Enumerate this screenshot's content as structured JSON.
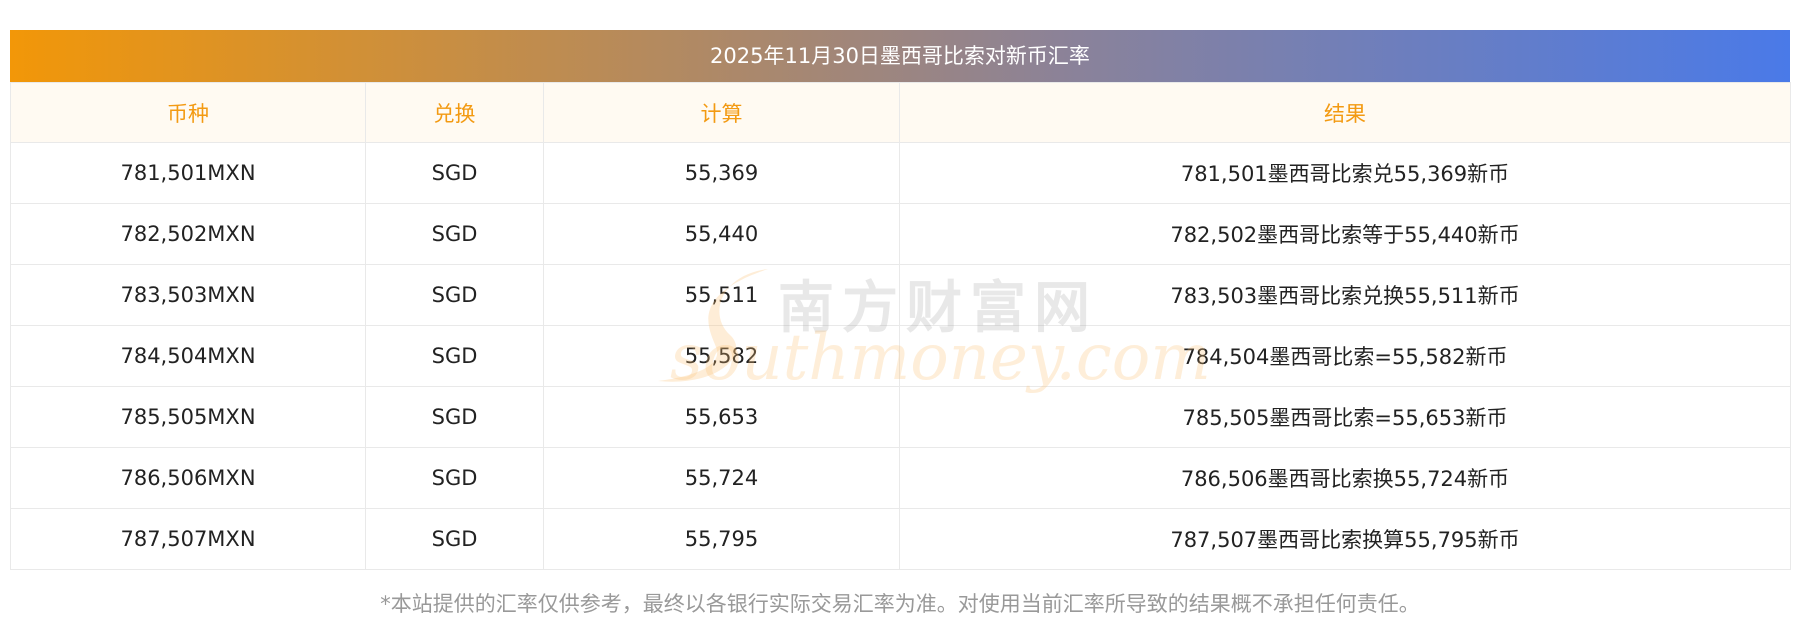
{
  "title": "2025年11月30日墨西哥比索对新币汇率",
  "headers": [
    "币种",
    "兑换",
    "计算",
    "结果"
  ],
  "rows": [
    [
      "781,501MXN",
      "SGD",
      "55,369",
      "781,501墨西哥比索兑55,369新币"
    ],
    [
      "782,502MXN",
      "SGD",
      "55,440",
      "782,502墨西哥比索等于55,440新币"
    ],
    [
      "783,503MXN",
      "SGD",
      "55,511",
      "783,503墨西哥比索兑换55,511新币"
    ],
    [
      "784,504MXN",
      "SGD",
      "55,582",
      "784,504墨西哥比索=55,582新币"
    ],
    [
      "785,505MXN",
      "SGD",
      "55,653",
      "785,505墨西哥比索=55,653新币"
    ],
    [
      "786,506MXN",
      "SGD",
      "55,724",
      "786,506墨西哥比索换55,724新币"
    ],
    [
      "787,507MXN",
      "SGD",
      "55,795",
      "787,507墨西哥比索换算55,795新币"
    ]
  ],
  "watermark": {
    "cn": "南方财富网",
    "en": "southmoney.com"
  },
  "footnote": "*本站提供的汇率仅供参考，最终以各银行实际交易汇率为准。对使用当前汇率所导致的结果概不承担任何责任。",
  "colors": {
    "header_text": "#f39a12",
    "gradient_start": "#f29708",
    "gradient_end": "#4a7ae8"
  }
}
